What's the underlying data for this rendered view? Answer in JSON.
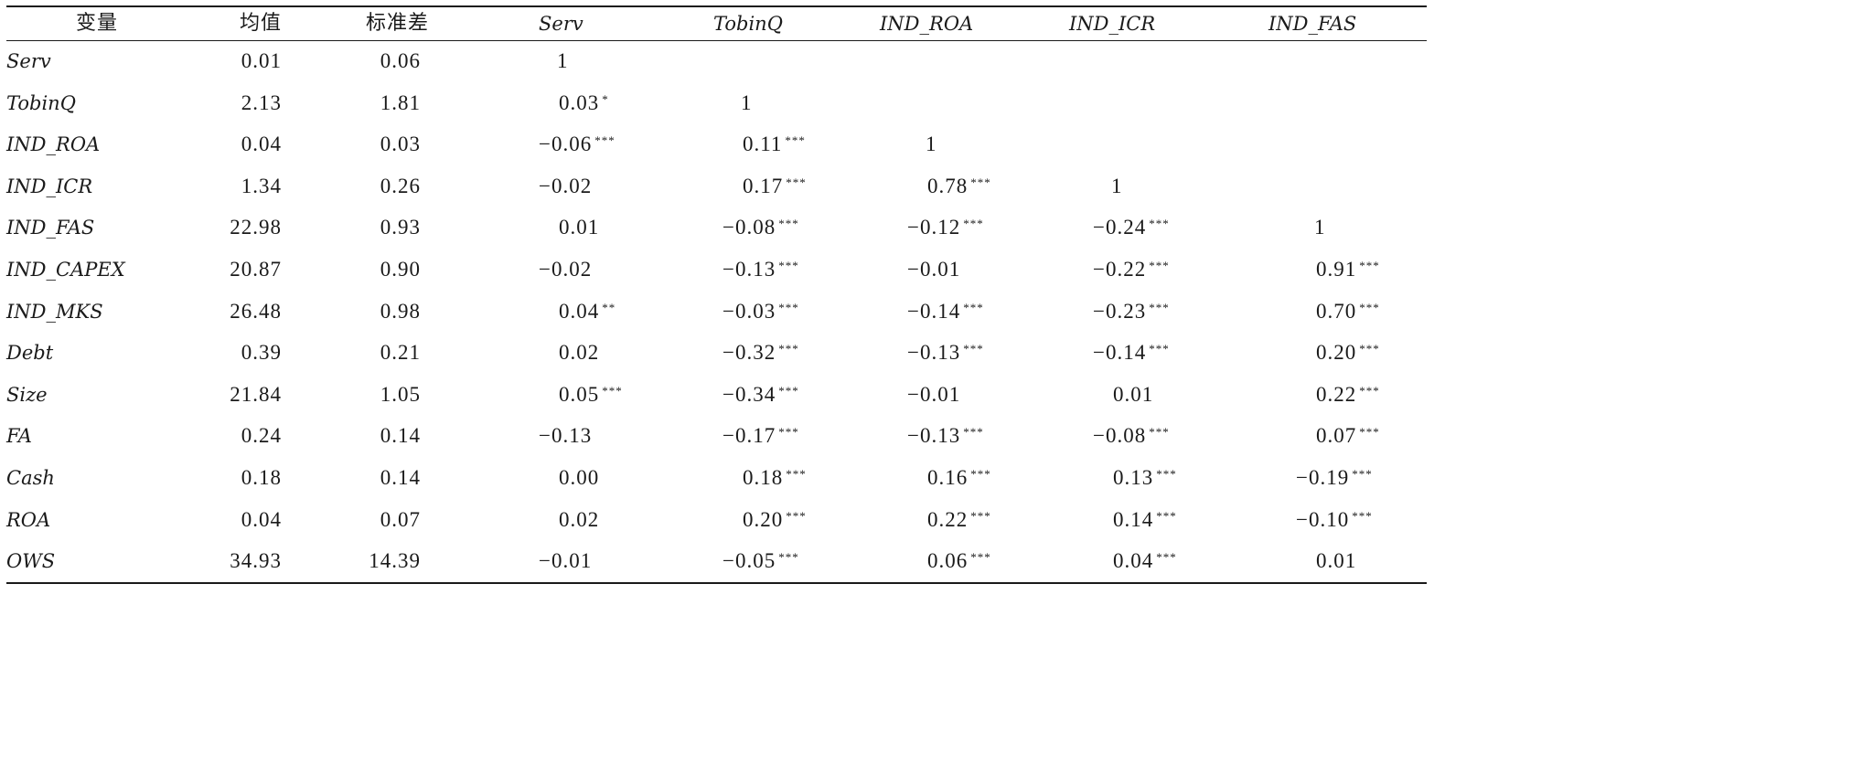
{
  "table": {
    "headers": [
      "变量",
      "均值",
      "标准差",
      "Serv",
      "TobinQ",
      "IND_ROA",
      "IND_ICR",
      "IND_FAS"
    ],
    "rows": [
      {
        "name": "Serv",
        "mean": "0.01",
        "sd": "0.06",
        "corr": [
          {
            "v": "1",
            "s": ""
          }
        ]
      },
      {
        "name": "TobinQ",
        "mean": "2.13",
        "sd": "1.81",
        "corr": [
          {
            "v": "0.03",
            "s": "*"
          },
          {
            "v": "1",
            "s": ""
          }
        ]
      },
      {
        "name": "IND_ROA",
        "mean": "0.04",
        "sd": "0.03",
        "corr": [
          {
            "v": "−0.06",
            "s": "***"
          },
          {
            "v": "0.11",
            "s": "***"
          },
          {
            "v": "1",
            "s": ""
          }
        ]
      },
      {
        "name": "IND_ICR",
        "mean": "1.34",
        "sd": "0.26",
        "corr": [
          {
            "v": "−0.02",
            "s": ""
          },
          {
            "v": "0.17",
            "s": "***"
          },
          {
            "v": "0.78",
            "s": "***"
          },
          {
            "v": "1",
            "s": ""
          }
        ]
      },
      {
        "name": "IND_FAS",
        "mean": "22.98",
        "sd": "0.93",
        "corr": [
          {
            "v": "0.01",
            "s": ""
          },
          {
            "v": "−0.08",
            "s": "***"
          },
          {
            "v": "−0.12",
            "s": "***"
          },
          {
            "v": "−0.24",
            "s": "***"
          },
          {
            "v": "1",
            "s": ""
          }
        ]
      },
      {
        "name": "IND_CAPEX",
        "mean": "20.87",
        "sd": "0.90",
        "corr": [
          {
            "v": "−0.02",
            "s": ""
          },
          {
            "v": "−0.13",
            "s": "***"
          },
          {
            "v": "−0.01",
            "s": ""
          },
          {
            "v": "−0.22",
            "s": "***"
          },
          {
            "v": "0.91",
            "s": "***"
          }
        ]
      },
      {
        "name": "IND_MKS",
        "mean": "26.48",
        "sd": "0.98",
        "corr": [
          {
            "v": "0.04",
            "s": "**"
          },
          {
            "v": "−0.03",
            "s": "***"
          },
          {
            "v": "−0.14",
            "s": "***"
          },
          {
            "v": "−0.23",
            "s": "***"
          },
          {
            "v": "0.70",
            "s": "***"
          }
        ]
      },
      {
        "name": "Debt",
        "mean": "0.39",
        "sd": "0.21",
        "corr": [
          {
            "v": "0.02",
            "s": ""
          },
          {
            "v": "−0.32",
            "s": "***"
          },
          {
            "v": "−0.13",
            "s": "***"
          },
          {
            "v": "−0.14",
            "s": "***"
          },
          {
            "v": "0.20",
            "s": "***"
          }
        ]
      },
      {
        "name": "Size",
        "mean": "21.84",
        "sd": "1.05",
        "corr": [
          {
            "v": "0.05",
            "s": "***"
          },
          {
            "v": "−0.34",
            "s": "***"
          },
          {
            "v": "−0.01",
            "s": ""
          },
          {
            "v": "0.01",
            "s": ""
          },
          {
            "v": "0.22",
            "s": "***"
          }
        ]
      },
      {
        "name": "FA",
        "mean": "0.24",
        "sd": "0.14",
        "corr": [
          {
            "v": "−0.13",
            "s": ""
          },
          {
            "v": "−0.17",
            "s": "***"
          },
          {
            "v": "−0.13",
            "s": "***"
          },
          {
            "v": "−0.08",
            "s": "***"
          },
          {
            "v": "0.07",
            "s": "***"
          }
        ]
      },
      {
        "name": "Cash",
        "mean": "0.18",
        "sd": "0.14",
        "corr": [
          {
            "v": "0.00",
            "s": ""
          },
          {
            "v": "0.18",
            "s": "***"
          },
          {
            "v": "0.16",
            "s": "***"
          },
          {
            "v": "0.13",
            "s": "***"
          },
          {
            "v": "−0.19",
            "s": "***"
          }
        ]
      },
      {
        "name": "ROA",
        "mean": "0.04",
        "sd": "0.07",
        "corr": [
          {
            "v": "0.02",
            "s": ""
          },
          {
            "v": "0.20",
            "s": "***"
          },
          {
            "v": "0.22",
            "s": "***"
          },
          {
            "v": "0.14",
            "s": "***"
          },
          {
            "v": "−0.10",
            "s": "***"
          }
        ]
      },
      {
        "name": "OWS",
        "mean": "34.93",
        "sd": "14.39",
        "corr": [
          {
            "v": "−0.01",
            "s": ""
          },
          {
            "v": "−0.05",
            "s": "***"
          },
          {
            "v": "0.06",
            "s": "***"
          },
          {
            "v": "0.04",
            "s": "***"
          },
          {
            "v": "0.01",
            "s": ""
          }
        ]
      }
    ]
  }
}
